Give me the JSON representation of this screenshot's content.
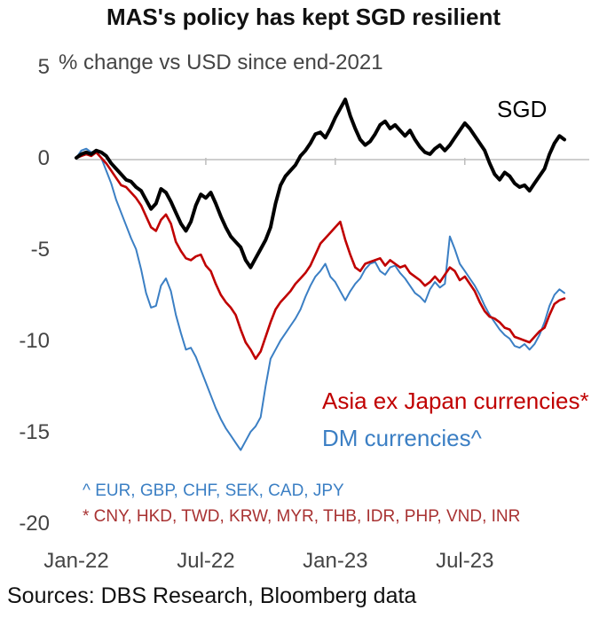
{
  "chart_data": {
    "type": "line",
    "title": "MAS's policy has kept SGD resilient",
    "ylabel": "% change vs USD since end-2021",
    "ylim": [
      -20,
      5
    ],
    "yticks": [
      5,
      0,
      -5,
      -10,
      -15,
      -20
    ],
    "x_tick_labels": [
      "Jan-22",
      "Jul-22",
      "Jan-23",
      "Jul-23"
    ],
    "x_tick_index": [
      0,
      26,
      52,
      78
    ],
    "series": [
      {
        "name": "SGD",
        "label": "SGD",
        "color": "#000000",
        "values": [
          0,
          0.2,
          0.3,
          0.2,
          0.4,
          0.3,
          0.1,
          -0.3,
          -0.6,
          -0.9,
          -1.2,
          -1.3,
          -1.6,
          -1.8,
          -2.3,
          -2.8,
          -2.5,
          -1.7,
          -1.9,
          -2.4,
          -3.0,
          -3.6,
          -4.0,
          -3.5,
          -2.6,
          -2.0,
          -2.2,
          -1.9,
          -2.5,
          -3.2,
          -3.8,
          -4.3,
          -4.6,
          -4.9,
          -5.6,
          -6.0,
          -5.5,
          -5.0,
          -4.5,
          -3.8,
          -2.5,
          -1.5,
          -1.0,
          -0.7,
          -0.4,
          0.1,
          0.4,
          0.8,
          1.3,
          1.4,
          1.1,
          1.6,
          2.2,
          2.7,
          3.2,
          2.3,
          1.6,
          1.0,
          0.7,
          0.9,
          1.3,
          1.8,
          2.0,
          1.6,
          1.8,
          1.5,
          1.2,
          1.5,
          1.0,
          0.6,
          0.3,
          0.2,
          0.5,
          0.7,
          0.4,
          0.7,
          1.1,
          1.5,
          1.9,
          1.6,
          1.2,
          0.8,
          0.4,
          -0.3,
          -0.9,
          -1.2,
          -0.8,
          -1.0,
          -1.4,
          -1.6,
          -1.5,
          -1.8,
          -1.4,
          -1.0,
          -0.6,
          0.2,
          0.8,
          1.2,
          1.0
        ]
      },
      {
        "name": "Asia ex Japan currencies*",
        "label": "Asia ex Japan currencies*",
        "color": "#c00000",
        "values": [
          0,
          0.1,
          0.2,
          0.1,
          0.3,
          0.0,
          -0.3,
          -0.7,
          -1.1,
          -1.5,
          -1.6,
          -1.9,
          -2.2,
          -2.6,
          -3.2,
          -3.8,
          -4.0,
          -3.4,
          -3.1,
          -3.6,
          -4.6,
          -5.1,
          -5.5,
          -5.6,
          -5.4,
          -5.3,
          -5.9,
          -6.2,
          -6.9,
          -7.5,
          -7.9,
          -8.2,
          -8.6,
          -9.4,
          -10.1,
          -10.5,
          -11.0,
          -10.6,
          -9.8,
          -9.0,
          -8.3,
          -7.9,
          -7.6,
          -7.3,
          -6.9,
          -6.6,
          -6.3,
          -5.9,
          -5.3,
          -4.7,
          -4.4,
          -4.1,
          -3.8,
          -3.5,
          -4.5,
          -5.3,
          -6.0,
          -6.2,
          -5.8,
          -5.7,
          -5.6,
          -5.5,
          -5.9,
          -5.6,
          -5.8,
          -6.0,
          -5.9,
          -6.3,
          -6.5,
          -6.7,
          -7.0,
          -6.8,
          -6.5,
          -6.8,
          -6.4,
          -6.0,
          -6.2,
          -6.7,
          -6.5,
          -6.9,
          -7.3,
          -7.9,
          -8.4,
          -8.7,
          -8.8,
          -9.0,
          -9.3,
          -9.4,
          -9.8,
          -9.9,
          -10.0,
          -10.1,
          -9.8,
          -9.5,
          -9.3,
          -8.6,
          -8.0,
          -7.8,
          -7.7
        ]
      },
      {
        "name": "DM currencies^",
        "label": "DM currencies^",
        "color": "#3b7fc4",
        "values": [
          0,
          0.4,
          0.5,
          0.3,
          0.4,
          0.0,
          -0.7,
          -1.4,
          -2.3,
          -3.0,
          -3.7,
          -4.4,
          -5.0,
          -6.1,
          -7.4,
          -8.2,
          -8.1,
          -7.0,
          -6.6,
          -7.3,
          -8.6,
          -9.6,
          -10.5,
          -10.4,
          -10.9,
          -11.6,
          -12.3,
          -13.0,
          -13.7,
          -14.3,
          -14.8,
          -15.2,
          -15.6,
          -16.0,
          -15.5,
          -15.0,
          -14.7,
          -14.2,
          -12.5,
          -11.0,
          -10.5,
          -10.0,
          -9.6,
          -9.2,
          -8.8,
          -8.3,
          -7.6,
          -7.0,
          -6.5,
          -6.2,
          -5.8,
          -6.5,
          -6.8,
          -7.3,
          -7.8,
          -7.3,
          -6.9,
          -6.6,
          -6.1,
          -5.8,
          -5.7,
          -6.2,
          -6.4,
          -6.0,
          -5.9,
          -6.3,
          -6.6,
          -7.0,
          -7.4,
          -7.6,
          -7.9,
          -7.2,
          -6.8,
          -7.1,
          -6.9,
          -4.3,
          -5.0,
          -5.8,
          -6.2,
          -6.6,
          -7.0,
          -7.5,
          -8.1,
          -8.6,
          -9.0,
          -9.4,
          -9.7,
          -9.9,
          -10.3,
          -10.4,
          -10.2,
          -10.5,
          -10.2,
          -9.7,
          -9.0,
          -8.1,
          -7.5,
          -7.2,
          -7.4
        ]
      }
    ],
    "footnotes": {
      "dm": "^ EUR, GBP, CHF, SEK, CAD, JPY",
      "asia": "* CNY, HKD, TWD, KRW, MYR, THB, IDR, PHP, VND, INR"
    }
  },
  "source": "Sources: DBS Research, Bloomberg data"
}
